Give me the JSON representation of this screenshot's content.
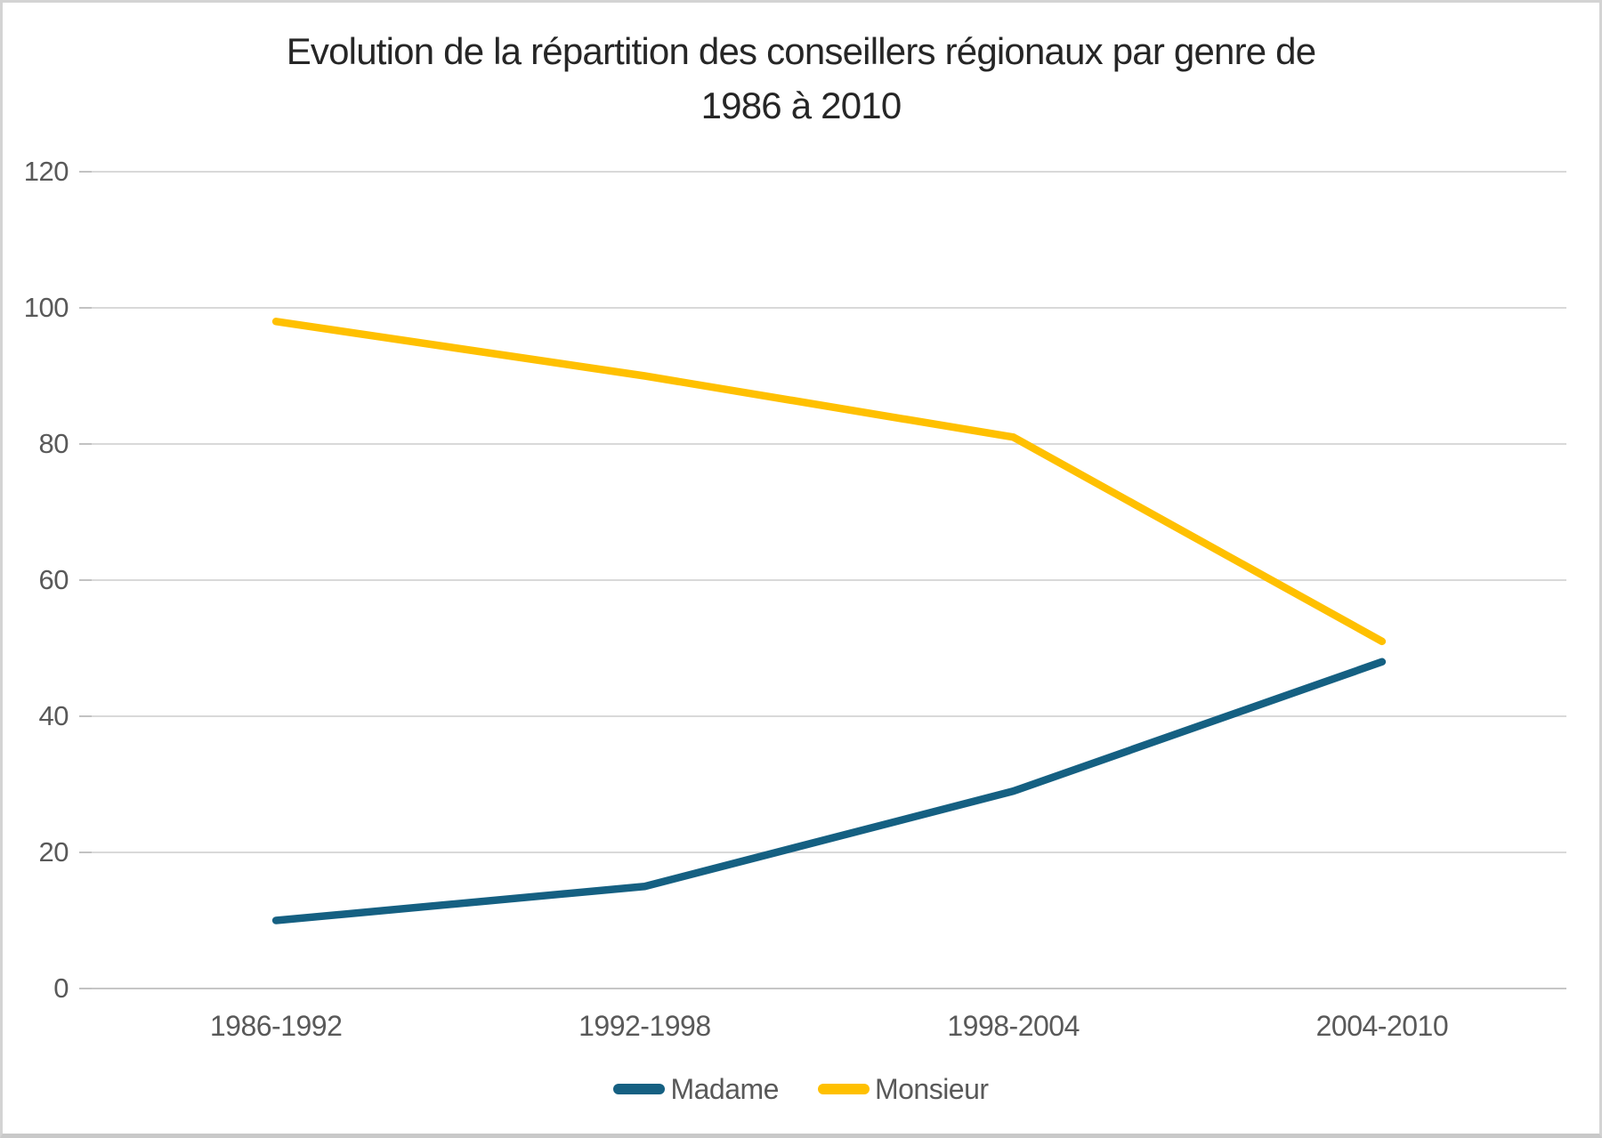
{
  "title": {
    "line1": "Evolution de la répartition des conseillers régionaux par genre de",
    "line2": "1986 à 2010"
  },
  "chart_data": {
    "type": "line",
    "title": "Evolution de la répartition des conseillers régionaux par genre de 1986 à 2010",
    "categories": [
      "1986-1992",
      "1992-1998",
      "1998-2004",
      "2004-2010"
    ],
    "series": [
      {
        "name": "Madame",
        "color": "#156082",
        "values": [
          10,
          15,
          29,
          48
        ]
      },
      {
        "name": "Monsieur",
        "color": "#FFC000",
        "values": [
          98,
          90,
          81,
          51
        ]
      }
    ],
    "yticks": [
      0,
      20,
      40,
      60,
      80,
      100,
      120
    ],
    "ylim": [
      0,
      120
    ],
    "xlabel": "",
    "ylabel": "",
    "grid": true,
    "legend_position": "bottom"
  },
  "palette": {
    "gridline": "#d9d9d9",
    "axis_line": "#c6c6c6",
    "tick_mark": "#c2c2c2",
    "axis_text": "#595959",
    "title_text": "#262626"
  }
}
